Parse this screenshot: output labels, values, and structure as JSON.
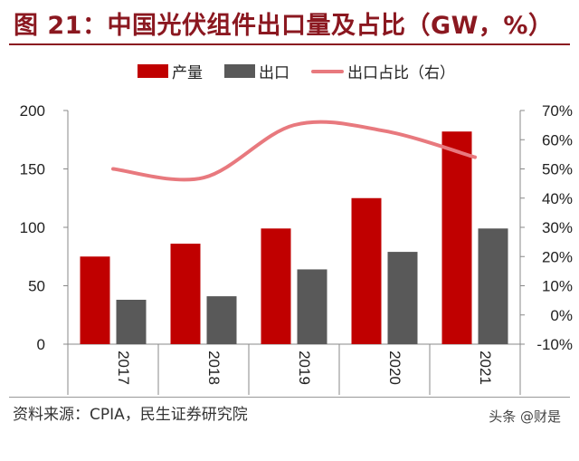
{
  "title": "图 21：中国光伏组件出口量及占比（GW，%）",
  "source": "资料来源：CPIA，民生证券研究院",
  "watermark": "头条 @财是",
  "colors": {
    "production": "#c00000",
    "export": "#595959",
    "ratio": "#e8797e",
    "title": "#8b1820"
  },
  "legend": [
    {
      "label": "产量",
      "kind": "bar",
      "color": "#c00000"
    },
    {
      "label": "出口",
      "kind": "bar",
      "color": "#595959"
    },
    {
      "label": "出口占比（右）",
      "kind": "line",
      "color": "#e8797e"
    }
  ],
  "chart_data": {
    "type": "bar",
    "categories": [
      "2017",
      "2018",
      "2019",
      "2020",
      "2021"
    ],
    "series": [
      {
        "name": "产量",
        "type": "bar",
        "axis": "left",
        "values": [
          75,
          86,
          99,
          125,
          182
        ]
      },
      {
        "name": "出口",
        "type": "bar",
        "axis": "left",
        "values": [
          38,
          41,
          64,
          79,
          99
        ]
      },
      {
        "name": "出口占比（右）",
        "type": "line",
        "axis": "right",
        "smooth": true,
        "values": [
          50,
          47,
          65,
          63,
          54
        ]
      }
    ],
    "ylim_left": [
      0,
      200
    ],
    "yticks_left": [
      "0",
      "50",
      "100",
      "150",
      "200"
    ],
    "ylim_right": [
      -10,
      70
    ],
    "yticks_right": [
      "-10%",
      "0%",
      "10%",
      "20%",
      "30%",
      "40%",
      "50%",
      "60%",
      "70%"
    ],
    "xlabel": "",
    "ylabel": "",
    "legend_position": "top-center",
    "grid": false
  }
}
